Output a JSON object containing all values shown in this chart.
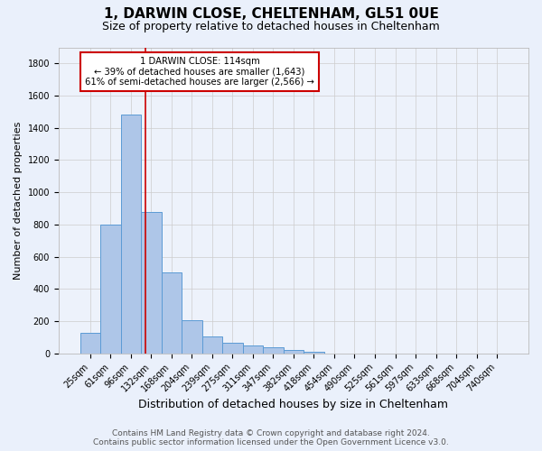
{
  "title1": "1, DARWIN CLOSE, CHELTENHAM, GL51 0UE",
  "title2": "Size of property relative to detached houses in Cheltenham",
  "xlabel": "Distribution of detached houses by size in Cheltenham",
  "ylabel": "Number of detached properties",
  "categories": [
    "25sqm",
    "61sqm",
    "96sqm",
    "132sqm",
    "168sqm",
    "204sqm",
    "239sqm",
    "275sqm",
    "311sqm",
    "347sqm",
    "382sqm",
    "418sqm",
    "454sqm",
    "490sqm",
    "525sqm",
    "561sqm",
    "597sqm",
    "633sqm",
    "668sqm",
    "704sqm",
    "740sqm"
  ],
  "values": [
    130,
    800,
    1480,
    880,
    500,
    205,
    105,
    65,
    48,
    35,
    20,
    12,
    0,
    0,
    0,
    0,
    0,
    0,
    0,
    0,
    0
  ],
  "bar_color": "#aec6e8",
  "bar_edge_color": "#5b9bd5",
  "vline_x": 2.72,
  "vline_color": "#cc0000",
  "annotation_title": "1 DARWIN CLOSE: 114sqm",
  "annotation_line1": "← 39% of detached houses are smaller (1,643)",
  "annotation_line2": "61% of semi-detached houses are larger (2,566) →",
  "annotation_box_color": "#ffffff",
  "annotation_box_edge": "#cc0000",
  "footer1": "Contains HM Land Registry data © Crown copyright and database right 2024.",
  "footer2": "Contains public sector information licensed under the Open Government Licence v3.0.",
  "bg_color": "#eaf0fb",
  "plot_bg_color": "#edf2fb",
  "ylim": [
    0,
    1900
  ],
  "yticks": [
    0,
    200,
    400,
    600,
    800,
    1000,
    1200,
    1400,
    1600,
    1800
  ],
  "grid_color": "#cccccc",
  "title1_fontsize": 11,
  "title2_fontsize": 9,
  "xlabel_fontsize": 9,
  "ylabel_fontsize": 8,
  "tick_fontsize": 7,
  "footer_fontsize": 6.5
}
